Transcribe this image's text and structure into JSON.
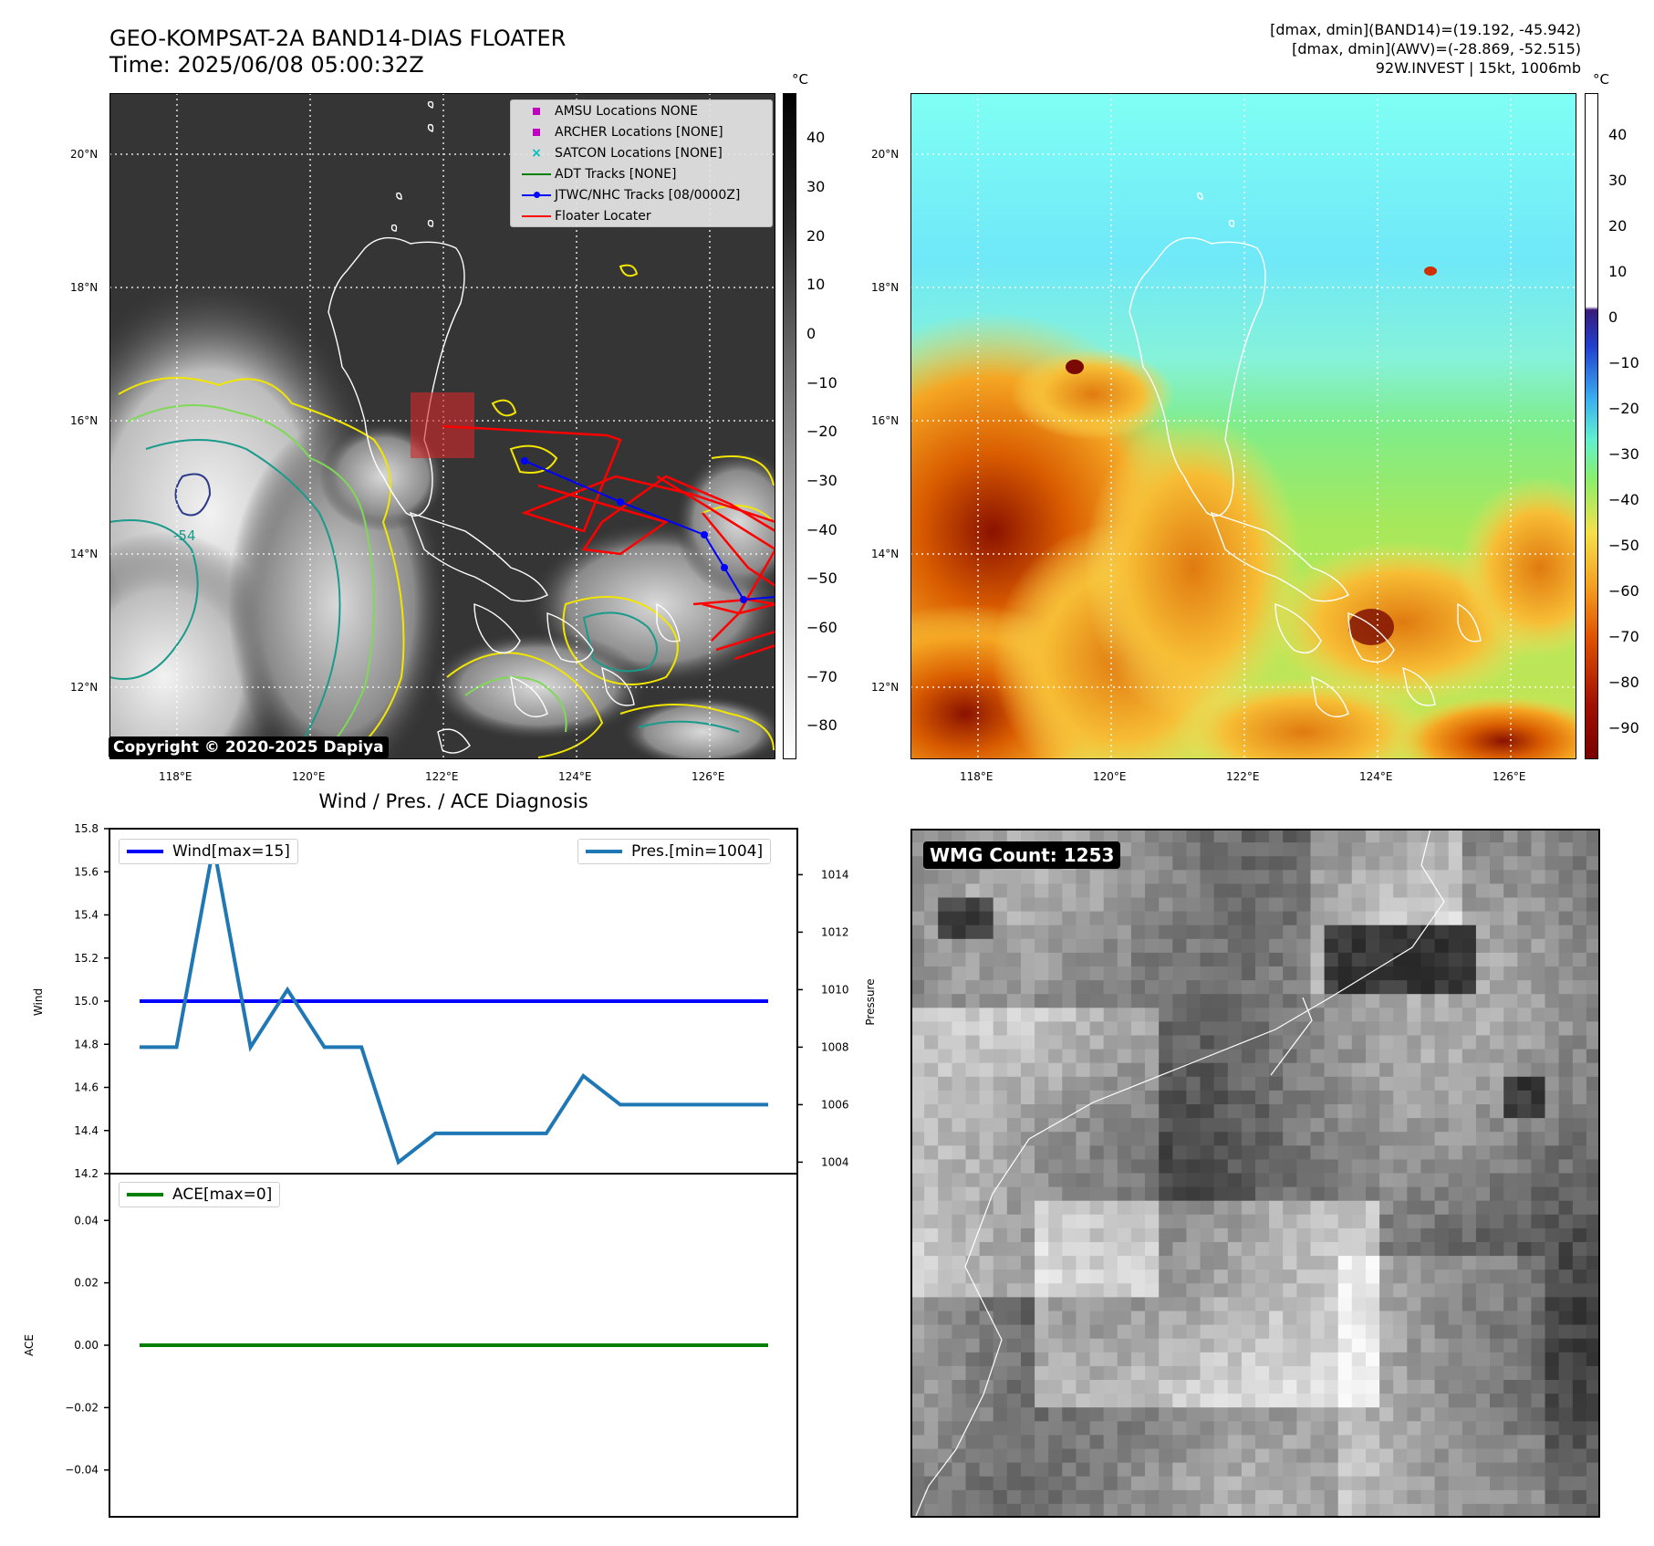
{
  "header": {
    "title_line1": "GEO-KOMPSAT-2A BAND14-DIAS FLOATER",
    "title_line2": "Time: 2025/06/08 05:00:32Z",
    "info_line1": "[dmax, dmin](BAND14)=(19.192, -45.942)",
    "info_line2": "[dmax, dmin](AWV)=(-28.869, -52.515)",
    "info_line3": "92W.INVEST | 15kt, 1006mb"
  },
  "map": {
    "lat_labels": [
      "20°N",
      "18°N",
      "16°N",
      "14°N",
      "12°N"
    ],
    "lon_labels": [
      "118°E",
      "120°E",
      "122°E",
      "124°E",
      "126°E"
    ],
    "contour_label": "-54",
    "copyright": "Copyright © 2020-2025 Dapiya",
    "colors": {
      "jtwc_track": "#0000ff",
      "floater": "#ff0000",
      "contour_yellow": "#f2e600",
      "contour_green": "#7ed957",
      "contour_teal": "#1a9a8a"
    }
  },
  "legend": {
    "items": [
      {
        "label": "AMSU Locations NONE",
        "icon": "magenta-square",
        "color": "#bf00bf"
      },
      {
        "label": "ARCHER Locations [NONE]",
        "icon": "magenta-square",
        "color": "#bf00bf"
      },
      {
        "label": "SATCON Locations [NONE]",
        "icon": "cyan-x",
        "color": "#00bfbf"
      },
      {
        "label": "ADT Tracks [NONE]",
        "icon": "green-line",
        "color": "#008000"
      },
      {
        "label": "JTWC/NHC Tracks [08/0000Z]",
        "icon": "blue-line-dot",
        "color": "#0000ff"
      },
      {
        "label": "Floater Locater",
        "icon": "red-line",
        "color": "#ff0000"
      }
    ]
  },
  "colorbar1": {
    "unit": "°C",
    "ticks": [
      "40",
      "30",
      "20",
      "10",
      "0",
      "−10",
      "−20",
      "−30",
      "−40",
      "−50",
      "−60",
      "−70",
      "−80"
    ]
  },
  "colorbar2": {
    "unit": "°C",
    "ticks": [
      "40",
      "30",
      "20",
      "10",
      "0",
      "−10",
      "−20",
      "−30",
      "−40",
      "−50",
      "−60",
      "−70",
      "−80",
      "−90"
    ]
  },
  "wmg": {
    "label": "WMG Count: 1253"
  },
  "chart_data": [
    {
      "type": "line",
      "title": "Wind / Pres. / ACE Diagnosis",
      "ylabel": "Wind",
      "ylim": [
        14.2,
        15.8
      ],
      "yticks": [
        "15.8",
        "15.6",
        "15.4",
        "15.2",
        "15.0",
        "14.8",
        "14.6",
        "14.4",
        "14.2"
      ],
      "legend_position": "upper-left",
      "series": [
        {
          "name": "Wind[max=15]",
          "color": "#0000ff",
          "values": [
            15,
            15,
            15,
            15,
            15,
            15,
            15,
            15,
            15,
            15,
            15,
            15,
            15,
            15,
            15,
            15,
            15,
            15
          ]
        }
      ]
    },
    {
      "type": "line",
      "ylabel": "Pressure",
      "ylim": [
        1003.6,
        1015.6
      ],
      "yticks": [
        "1014",
        "1012",
        "1010",
        "1008",
        "1006",
        "1004"
      ],
      "legend_position": "upper-right",
      "series": [
        {
          "name": "Pres.[min=1004]",
          "color": "#1f77b4",
          "values": [
            1008,
            1008,
            1015,
            1008,
            1010,
            1008,
            1008,
            1004,
            1005,
            1005,
            1005,
            1005,
            1007,
            1006,
            1006,
            1006,
            1006,
            1006
          ]
        }
      ]
    },
    {
      "type": "line",
      "ylabel": "ACE",
      "ylim": [
        -0.055,
        0.055
      ],
      "yticks": [
        "0.04",
        "0.02",
        "0.00",
        "−0.02",
        "−0.04"
      ],
      "legend_position": "upper-left",
      "series": [
        {
          "name": "ACE[max=0]",
          "color": "#008000",
          "values": [
            0,
            0,
            0,
            0,
            0,
            0,
            0,
            0,
            0,
            0,
            0,
            0,
            0,
            0,
            0,
            0,
            0,
            0
          ]
        }
      ]
    }
  ]
}
